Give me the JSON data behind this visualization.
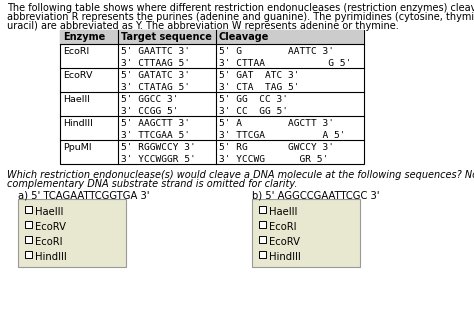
{
  "intro_line1": "The following table shows where different restriction endonucleases (restriction enzymes) cleave DNA. The",
  "intro_line2": "abbreviation R represents the purines (adenine and guanine). The pyrimidines (cytosine, thymine, and",
  "intro_line3": "uracil) are abbreviated as Y. The abbreviation W represents adenine or thymine.",
  "table_headers": [
    "Enzyme",
    "Target sequence",
    "Cleavage"
  ],
  "table_rows": [
    [
      "EcoRI",
      "5' GAATTC 3'\n3' CTTAAG 5'",
      "5' G        AATTC 3'\n3' CTTAA           G 5'"
    ],
    [
      "EcoRV",
      "5' GATATC 3'\n3' CTATAG 5'",
      "5' GAT  ATC 3'\n3' CTA  TAG 5'"
    ],
    [
      "HaeIII",
      "5' GGCC 3'\n3' CCGG 5'",
      "5' GG  CC 3'\n3' CC  GG 5'"
    ],
    [
      "HindIII",
      "5' AAGCTT 3'\n3' TTCGAA 5'",
      "5' A        AGCTT 3'\n3' TTCGA          A 5'"
    ],
    [
      "PpuMI",
      "5' RGGWCCY 3'\n3' YCCWGGR 5'",
      "5' RG       GWCCY 3'\n3' YCCWG      GR 5'"
    ]
  ],
  "question_line1": "Which restriction endonuclease(s) would cleave a DNA molecule at the following sequences? Note: The",
  "question_line2": "complementary DNA substrate strand is omitted for clarity.",
  "part_a_label": "a) 5' TCAGAATTCGGTGA 3'",
  "part_b_label": "b) 5' AGGCCGAATTCGC 3'",
  "part_a_options": [
    "HaeIII",
    "EcoRV",
    "EcoRI",
    "HindIII"
  ],
  "part_b_options": [
    "HaeIII",
    "EcoRI",
    "EcoRV",
    "HindIII"
  ],
  "box_bg": "#e8e8d0",
  "fs_intro": 7.0,
  "fs_table_header": 7.0,
  "fs_table_body": 6.8,
  "fs_question": 7.0,
  "fs_label": 7.2,
  "fs_option": 7.2
}
